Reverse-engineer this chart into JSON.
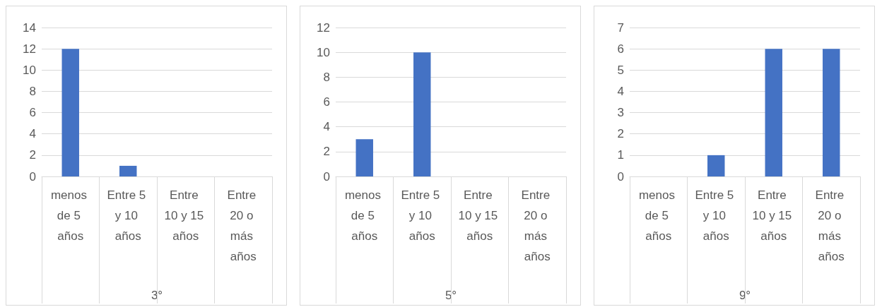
{
  "chart_data": [
    {
      "type": "bar",
      "xlabel": "3°",
      "categories": [
        "menos de 5 años",
        "Entre 5 y 10 años",
        "Entre 10 y 15 años",
        "Entre 20 o más años"
      ],
      "values": [
        12,
        1,
        0,
        0
      ],
      "color": "#4472c4",
      "ylim": [
        0,
        14
      ],
      "yticks": [
        0,
        2,
        4,
        6,
        8,
        10,
        12,
        14
      ],
      "grid": "y"
    },
    {
      "type": "bar",
      "xlabel": "5°",
      "categories": [
        "menos de 5 años",
        "Entre 5 y 10 años",
        "Entre 10 y 15 años",
        "Entre 20 o más años"
      ],
      "values": [
        3,
        10,
        0,
        0
      ],
      "color": "#4472c4",
      "ylim": [
        0,
        12
      ],
      "yticks": [
        0,
        2,
        4,
        6,
        8,
        10,
        12
      ],
      "grid": "y"
    },
    {
      "type": "bar",
      "xlabel": "9°",
      "categories": [
        "menos de 5 años",
        "Entre 5 y 10 años",
        "Entre 10 y 15 años",
        "Entre 20 o más años"
      ],
      "values": [
        0,
        1,
        6,
        6
      ],
      "color": "#4472c4",
      "ylim": [
        0,
        7
      ],
      "yticks": [
        0,
        1,
        2,
        3,
        4,
        5,
        6,
        7
      ],
      "grid": "y"
    }
  ]
}
